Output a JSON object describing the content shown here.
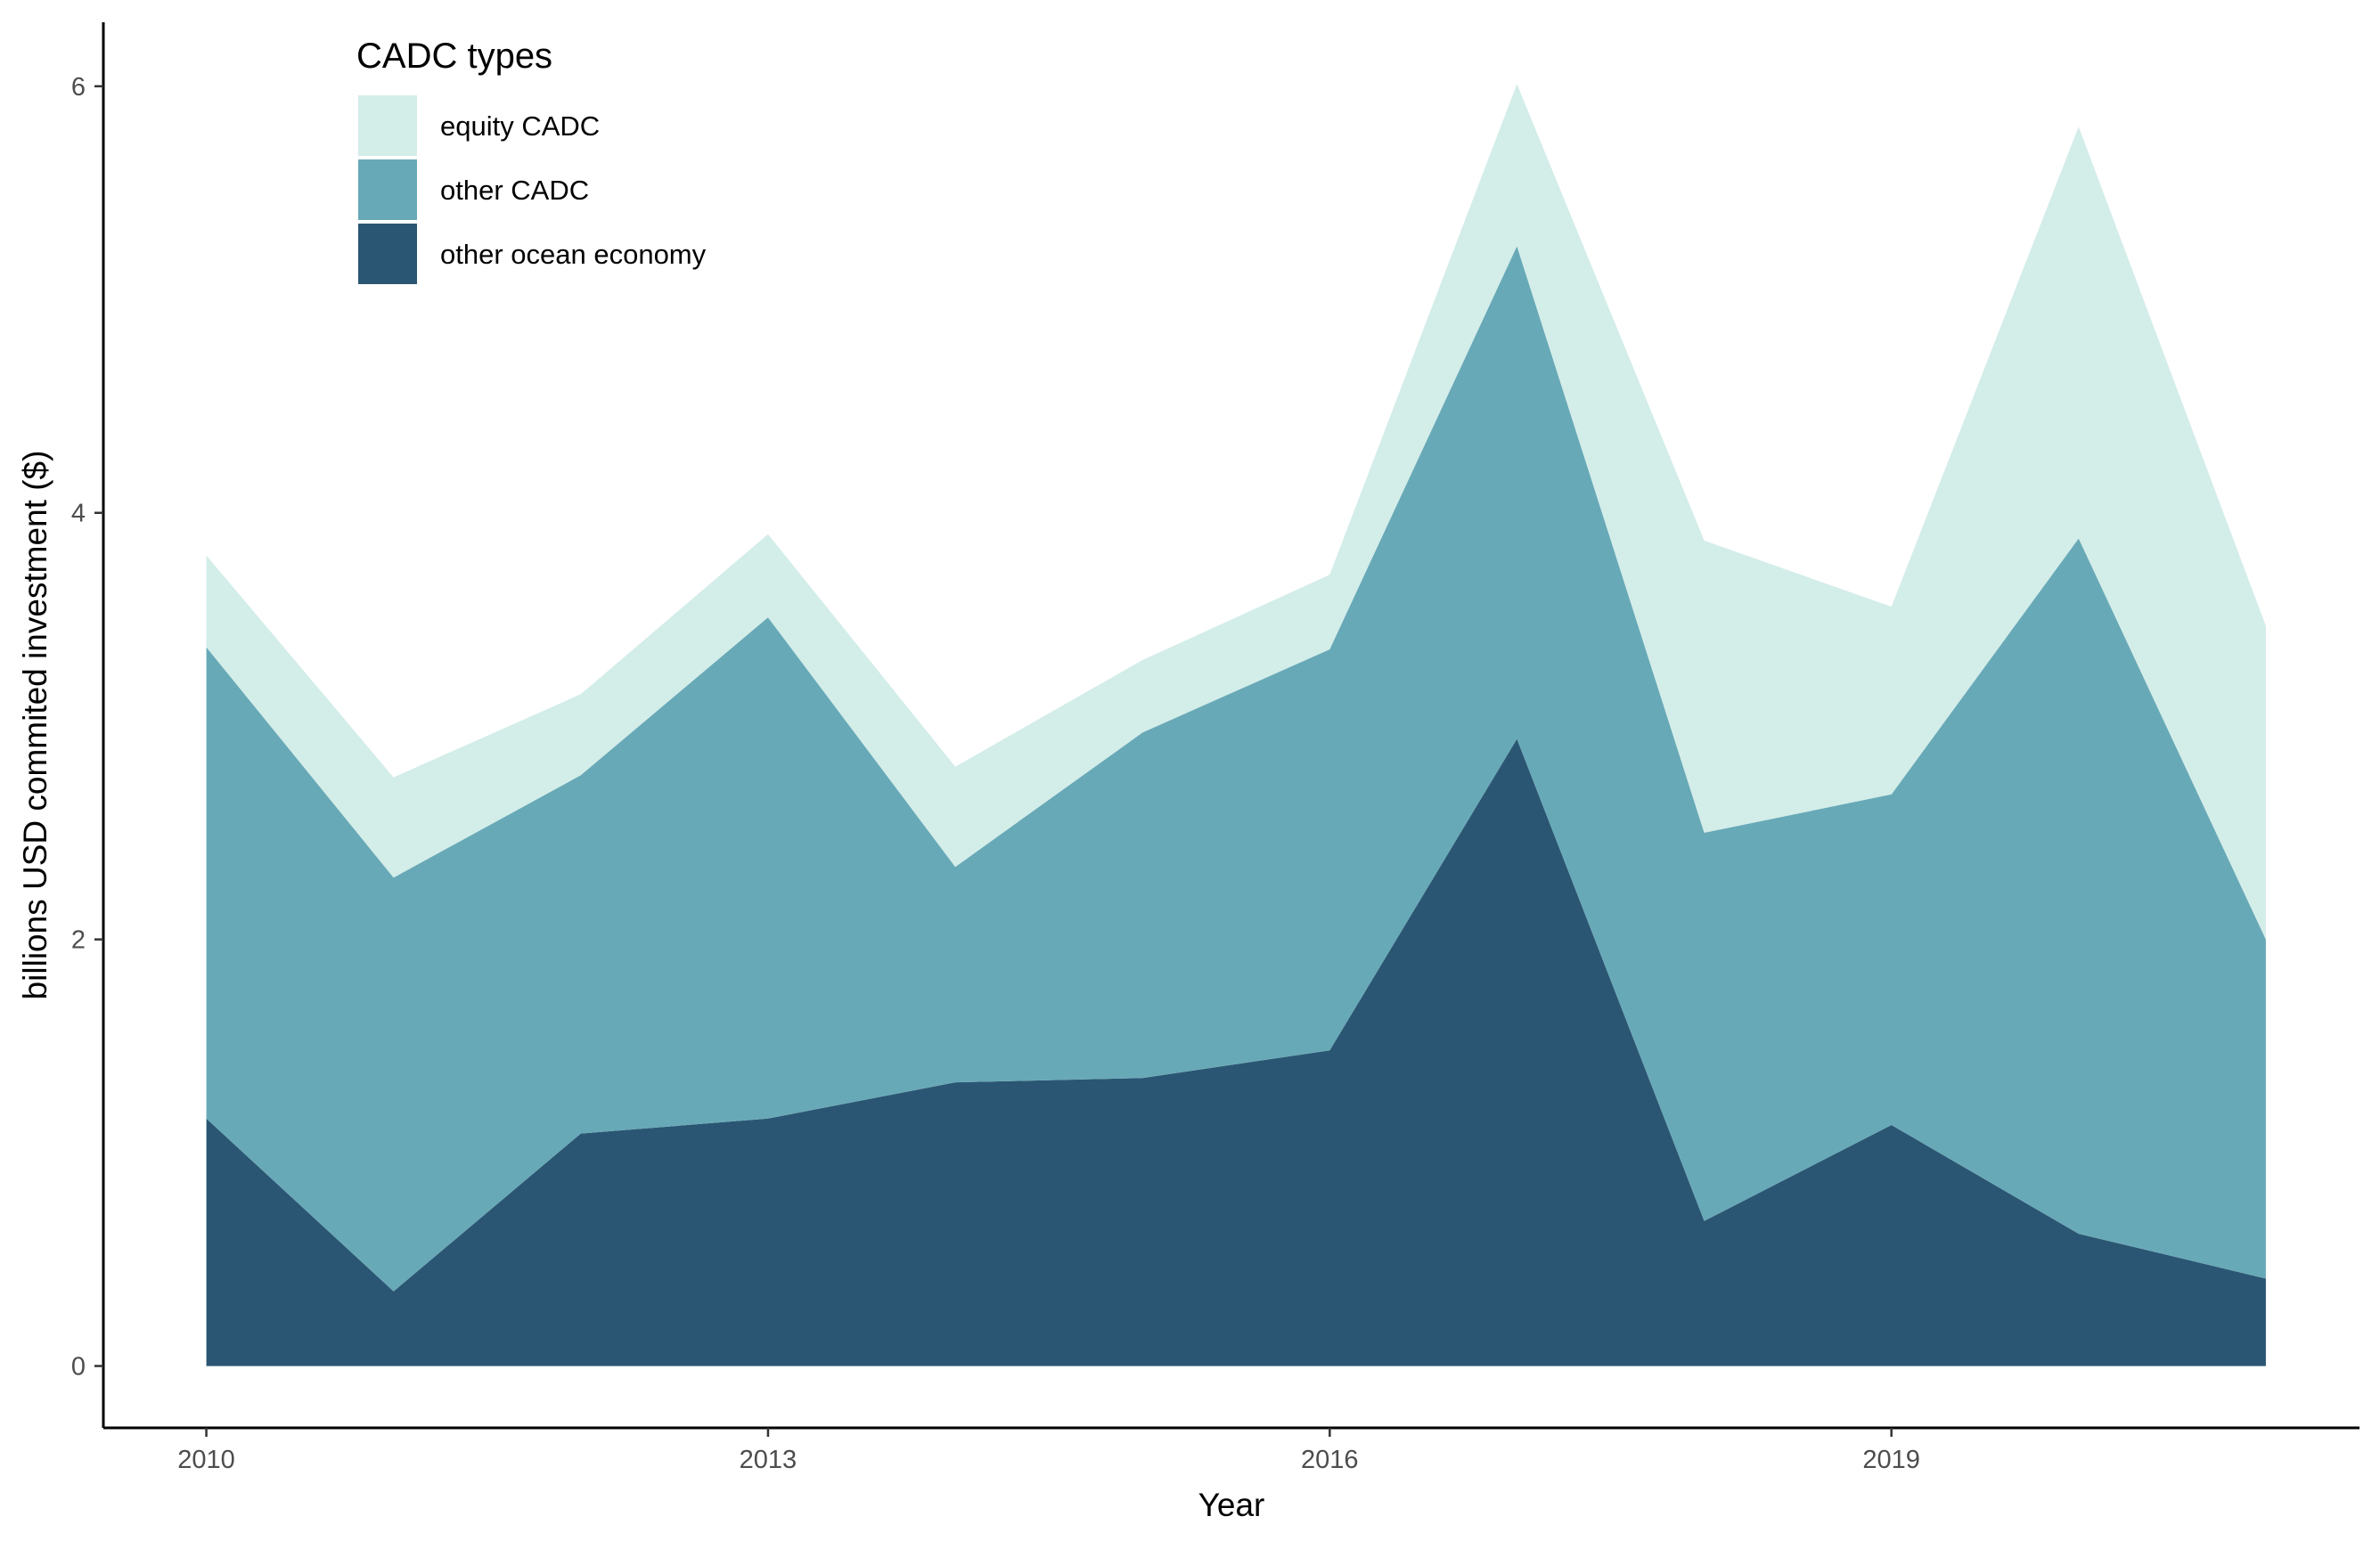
{
  "chart_data": {
    "type": "area",
    "stacked": true,
    "x": [
      2010,
      2011,
      2012,
      2013,
      2014,
      2015,
      2016,
      2017,
      2018,
      2019,
      2020,
      2021
    ],
    "series": [
      {
        "name": "other ocean economy",
        "color": "#2b5673",
        "values": [
          1.16,
          0.35,
          1.09,
          1.16,
          1.33,
          1.35,
          1.48,
          2.94,
          0.68,
          1.13,
          0.62,
          0.41
        ]
      },
      {
        "name": "other CADC",
        "color": "#68a9b7",
        "values": [
          2.21,
          1.94,
          1.68,
          2.35,
          1.01,
          1.62,
          1.88,
          2.31,
          1.82,
          1.55,
          3.26,
          1.59
        ]
      },
      {
        "name": "equity CADC",
        "color": "#d3ede9",
        "values": [
          0.43,
          0.47,
          0.38,
          0.39,
          0.47,
          0.34,
          0.35,
          0.76,
          1.37,
          0.88,
          1.93,
          1.47
        ]
      }
    ],
    "xlabel": "Year",
    "ylabel": "billions USD commited investment ($)",
    "xticks": [
      "2010",
      "2013",
      "2016",
      "2019"
    ],
    "yticks": [
      "0",
      "2",
      "4",
      "6"
    ],
    "xlim": [
      2009.45,
      2021.5
    ],
    "ylim": [
      -0.29,
      6.3
    ],
    "legend": {
      "title": "CADC types",
      "placement": "top-left",
      "entries": [
        "equity CADC",
        "other CADC",
        "other ocean economy"
      ]
    },
    "grid": false
  }
}
